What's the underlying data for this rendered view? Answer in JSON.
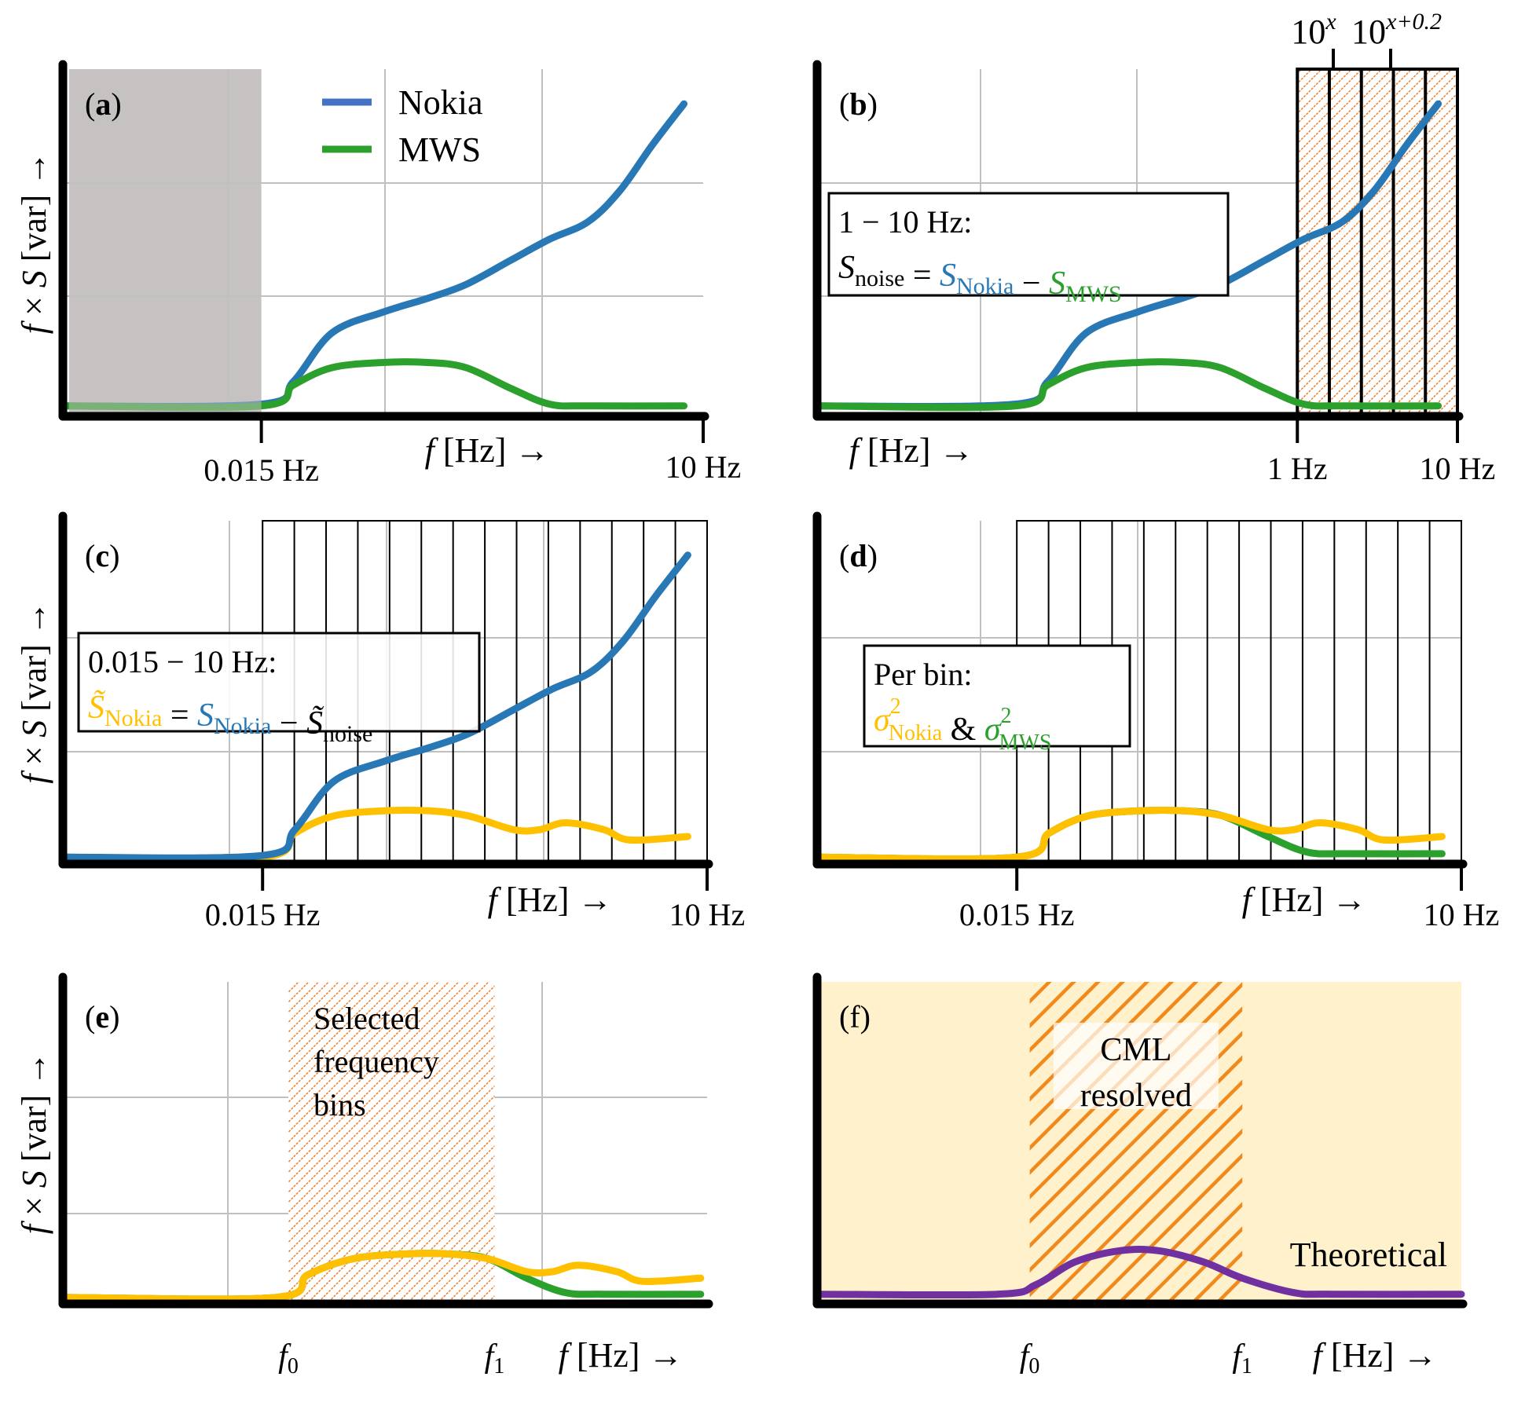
{
  "colors": {
    "nokia": "#2878b5",
    "mws": "#2ca02c",
    "nokia_tilde": "#ffc000",
    "theoretical": "#7030a0",
    "hatch": "#f07f2a",
    "hatch_dark": "#f08a1c",
    "shade": "#c6c2c1",
    "cream": "#fef1cc",
    "grid": "#c0c0c0",
    "axis": "#000000",
    "legend_nokia": "#4472c4"
  },
  "y_axis_label": {
    "f": "f",
    "times": "×",
    "S": "S",
    "unit": "[var]",
    "arrow": "→"
  },
  "x_axis_label": {
    "f": "f",
    "unit": "[Hz]",
    "arrow": "→"
  },
  "panels": [
    {
      "id": "a",
      "label": "(a)",
      "label_bold": "a",
      "legend": [
        {
          "name": "Nokia",
          "color_key": "legend_nokia"
        },
        {
          "name": "MWS",
          "color_key": "mws"
        }
      ],
      "ticks": [
        {
          "pos": 0.31,
          "label": "0.015 Hz"
        },
        {
          "pos": 1.0,
          "label": "10 Hz"
        }
      ],
      "shade_range": [
        0.0,
        0.31
      ],
      "series": [
        {
          "name": "Nokia",
          "color_key": "nokia",
          "points": [
            [
              0,
              0.03
            ],
            [
              0.31,
              0.035
            ],
            [
              0.36,
              0.1
            ],
            [
              0.42,
              0.24
            ],
            [
              0.5,
              0.3
            ],
            [
              0.57,
              0.34
            ],
            [
              0.63,
              0.38
            ],
            [
              0.7,
              0.45
            ],
            [
              0.76,
              0.51
            ],
            [
              0.82,
              0.56
            ],
            [
              0.87,
              0.65
            ],
            [
              0.92,
              0.78
            ],
            [
              0.97,
              0.9
            ]
          ]
        },
        {
          "name": "MWS",
          "color_key": "mws",
          "points": [
            [
              0,
              0.03
            ],
            [
              0.31,
              0.03
            ],
            [
              0.36,
              0.09
            ],
            [
              0.42,
              0.14
            ],
            [
              0.5,
              0.155
            ],
            [
              0.57,
              0.155
            ],
            [
              0.63,
              0.14
            ],
            [
              0.7,
              0.08
            ],
            [
              0.76,
              0.035
            ],
            [
              0.82,
              0.03
            ],
            [
              0.97,
              0.03
            ]
          ]
        }
      ]
    },
    {
      "id": "b",
      "label": "(b)",
      "label_bold": "b",
      "ticks": [
        {
          "pos": 0.75,
          "label": "1 Hz"
        },
        {
          "pos": 1.0,
          "label": "10 Hz"
        }
      ],
      "top_ticks": [
        {
          "label_base": "10",
          "label_exp": "x"
        },
        {
          "label_base": "10",
          "label_exp": "x+0.2"
        }
      ],
      "hatched_bins": {
        "range": [
          0.75,
          1.0
        ],
        "count": 5
      },
      "annotation": {
        "line1": "1 − 10 Hz:",
        "line2_parts": [
          {
            "text": "S",
            "sub": "noise",
            "color_key": null
          },
          {
            "text": " = ",
            "sub": "",
            "color_key": null
          },
          {
            "text": "S",
            "sub": "Nokia",
            "color_key": "nokia"
          },
          {
            "text": " − ",
            "sub": "",
            "color_key": null
          },
          {
            "text": "S",
            "sub": "MWS",
            "color_key": "mws"
          }
        ]
      },
      "series": [
        {
          "name": "Nokia",
          "color_key": "nokia",
          "points": [
            [
              0,
              0.03
            ],
            [
              0.31,
              0.035
            ],
            [
              0.36,
              0.1
            ],
            [
              0.42,
              0.24
            ],
            [
              0.5,
              0.3
            ],
            [
              0.57,
              0.34
            ],
            [
              0.63,
              0.38
            ],
            [
              0.7,
              0.45
            ],
            [
              0.76,
              0.51
            ],
            [
              0.82,
              0.56
            ],
            [
              0.87,
              0.65
            ],
            [
              0.92,
              0.78
            ],
            [
              0.97,
              0.9
            ]
          ]
        },
        {
          "name": "MWS",
          "color_key": "mws",
          "points": [
            [
              0,
              0.03
            ],
            [
              0.31,
              0.03
            ],
            [
              0.36,
              0.09
            ],
            [
              0.42,
              0.14
            ],
            [
              0.5,
              0.155
            ],
            [
              0.57,
              0.155
            ],
            [
              0.63,
              0.14
            ],
            [
              0.7,
              0.08
            ],
            [
              0.76,
              0.035
            ],
            [
              0.82,
              0.03
            ],
            [
              0.97,
              0.03
            ]
          ]
        }
      ]
    },
    {
      "id": "c",
      "label": "(c)",
      "label_bold": "c",
      "ticks": [
        {
          "pos": 0.31,
          "label": "0.015 Hz"
        },
        {
          "pos": 1.0,
          "label": "10 Hz"
        }
      ],
      "bins": {
        "range": [
          0.31,
          1.0
        ],
        "count": 14
      },
      "annotation": {
        "line1": "0.015 − 10 Hz:",
        "line2_parts": [
          {
            "text": "S̃",
            "sub": "Nokia",
            "color_key": "nokia_tilde"
          },
          {
            "text": " = ",
            "sub": "",
            "color_key": null
          },
          {
            "text": "S",
            "sub": "Nokia",
            "color_key": "nokia"
          },
          {
            "text": " − ",
            "sub": "",
            "color_key": null
          },
          {
            "text": "S̃",
            "sub": "noise",
            "color_key": null
          }
        ]
      },
      "series": [
        {
          "name": "S~Nokia",
          "color_key": "nokia_tilde",
          "points": [
            [
              0,
              0.02
            ],
            [
              0.31,
              0.02
            ],
            [
              0.36,
              0.09
            ],
            [
              0.42,
              0.14
            ],
            [
              0.5,
              0.155
            ],
            [
              0.57,
              0.155
            ],
            [
              0.63,
              0.14
            ],
            [
              0.7,
              0.1
            ],
            [
              0.74,
              0.1
            ],
            [
              0.78,
              0.12
            ],
            [
              0.84,
              0.1
            ],
            [
              0.88,
              0.07
            ],
            [
              0.97,
              0.08
            ]
          ]
        },
        {
          "name": "Nokia",
          "color_key": "nokia",
          "points": [
            [
              0,
              0.02
            ],
            [
              0.31,
              0.025
            ],
            [
              0.36,
              0.1
            ],
            [
              0.42,
              0.24
            ],
            [
              0.5,
              0.3
            ],
            [
              0.57,
              0.34
            ],
            [
              0.63,
              0.38
            ],
            [
              0.7,
              0.45
            ],
            [
              0.76,
              0.51
            ],
            [
              0.82,
              0.56
            ],
            [
              0.87,
              0.65
            ],
            [
              0.92,
              0.78
            ],
            [
              0.97,
              0.9
            ]
          ]
        }
      ]
    },
    {
      "id": "d",
      "label": "(d)",
      "label_bold": "d",
      "ticks": [
        {
          "pos": 0.31,
          "label": "0.015 Hz"
        },
        {
          "pos": 1.0,
          "label": "10 Hz"
        }
      ],
      "bins": {
        "range": [
          0.31,
          1.0
        ],
        "count": 14
      },
      "annotation": {
        "line1": "Per bin:",
        "line2_parts": [
          {
            "text": "σ",
            "sup": "2",
            "sub": "Nokia",
            "color_key": "nokia_tilde"
          },
          {
            "text": " & ",
            "sub": "",
            "color_key": null
          },
          {
            "text": "σ",
            "sup": "2",
            "sub": "MWS",
            "color_key": "mws"
          }
        ]
      },
      "series": [
        {
          "name": "MWS",
          "color_key": "mws",
          "points": [
            [
              0,
              0.02
            ],
            [
              0.31,
              0.02
            ],
            [
              0.36,
              0.09
            ],
            [
              0.42,
              0.14
            ],
            [
              0.5,
              0.155
            ],
            [
              0.57,
              0.155
            ],
            [
              0.63,
              0.14
            ],
            [
              0.7,
              0.08
            ],
            [
              0.76,
              0.035
            ],
            [
              0.82,
              0.03
            ],
            [
              0.97,
              0.03
            ]
          ]
        },
        {
          "name": "Nokia sigma",
          "color_key": "nokia_tilde",
          "points": [
            [
              0,
              0.02
            ],
            [
              0.31,
              0.02
            ],
            [
              0.36,
              0.09
            ],
            [
              0.42,
              0.14
            ],
            [
              0.5,
              0.155
            ],
            [
              0.57,
              0.155
            ],
            [
              0.63,
              0.14
            ],
            [
              0.7,
              0.1
            ],
            [
              0.74,
              0.1
            ],
            [
              0.78,
              0.12
            ],
            [
              0.84,
              0.1
            ],
            [
              0.88,
              0.07
            ],
            [
              0.97,
              0.08
            ]
          ]
        }
      ]
    },
    {
      "id": "e",
      "label": "(e)",
      "label_bold": "e",
      "ticks": [
        {
          "pos": 0.35,
          "label_base": "f",
          "label_sub": "0"
        },
        {
          "pos": 0.67,
          "label_base": "f",
          "label_sub": "1"
        }
      ],
      "hatched_region": {
        "range": [
          0.35,
          0.67
        ],
        "text": [
          "Selected",
          "frequency",
          "bins"
        ]
      },
      "series": [
        {
          "name": "MWS",
          "color_key": "mws",
          "points": [
            [
              0,
              0.02
            ],
            [
              0.33,
              0.02
            ],
            [
              0.38,
              0.09
            ],
            [
              0.45,
              0.14
            ],
            [
              0.53,
              0.155
            ],
            [
              0.6,
              0.155
            ],
            [
              0.66,
              0.14
            ],
            [
              0.72,
              0.08
            ],
            [
              0.78,
              0.035
            ],
            [
              0.84,
              0.03
            ],
            [
              0.99,
              0.03
            ]
          ]
        },
        {
          "name": "Nokia sigma",
          "color_key": "nokia_tilde",
          "points": [
            [
              0,
              0.02
            ],
            [
              0.33,
              0.02
            ],
            [
              0.38,
              0.09
            ],
            [
              0.45,
              0.14
            ],
            [
              0.53,
              0.155
            ],
            [
              0.6,
              0.155
            ],
            [
              0.66,
              0.14
            ],
            [
              0.72,
              0.1
            ],
            [
              0.76,
              0.1
            ],
            [
              0.8,
              0.12
            ],
            [
              0.86,
              0.1
            ],
            [
              0.9,
              0.07
            ],
            [
              0.99,
              0.08
            ]
          ]
        }
      ]
    },
    {
      "id": "f",
      "label": "(f)",
      "label_bold": "",
      "ticks": [
        {
          "pos": 0.33,
          "label_base": "f",
          "label_sub": "0"
        },
        {
          "pos": 0.66,
          "label_base": "f",
          "label_sub": "1"
        }
      ],
      "hatched_region": {
        "range": [
          0.33,
          0.66
        ],
        "text": [
          "CML",
          "resolved"
        ]
      },
      "series_label": {
        "text": "Theoretical",
        "color_key": "theoretical"
      },
      "series": [
        {
          "name": "Theoretical",
          "color_key": "theoretical",
          "points": [
            [
              0,
              0.03
            ],
            [
              0.28,
              0.03
            ],
            [
              0.34,
              0.06
            ],
            [
              0.4,
              0.13
            ],
            [
              0.47,
              0.165
            ],
            [
              0.53,
              0.165
            ],
            [
              0.6,
              0.13
            ],
            [
              0.66,
              0.08
            ],
            [
              0.74,
              0.035
            ],
            [
              0.8,
              0.03
            ],
            [
              1.0,
              0.03
            ]
          ]
        }
      ]
    }
  ]
}
